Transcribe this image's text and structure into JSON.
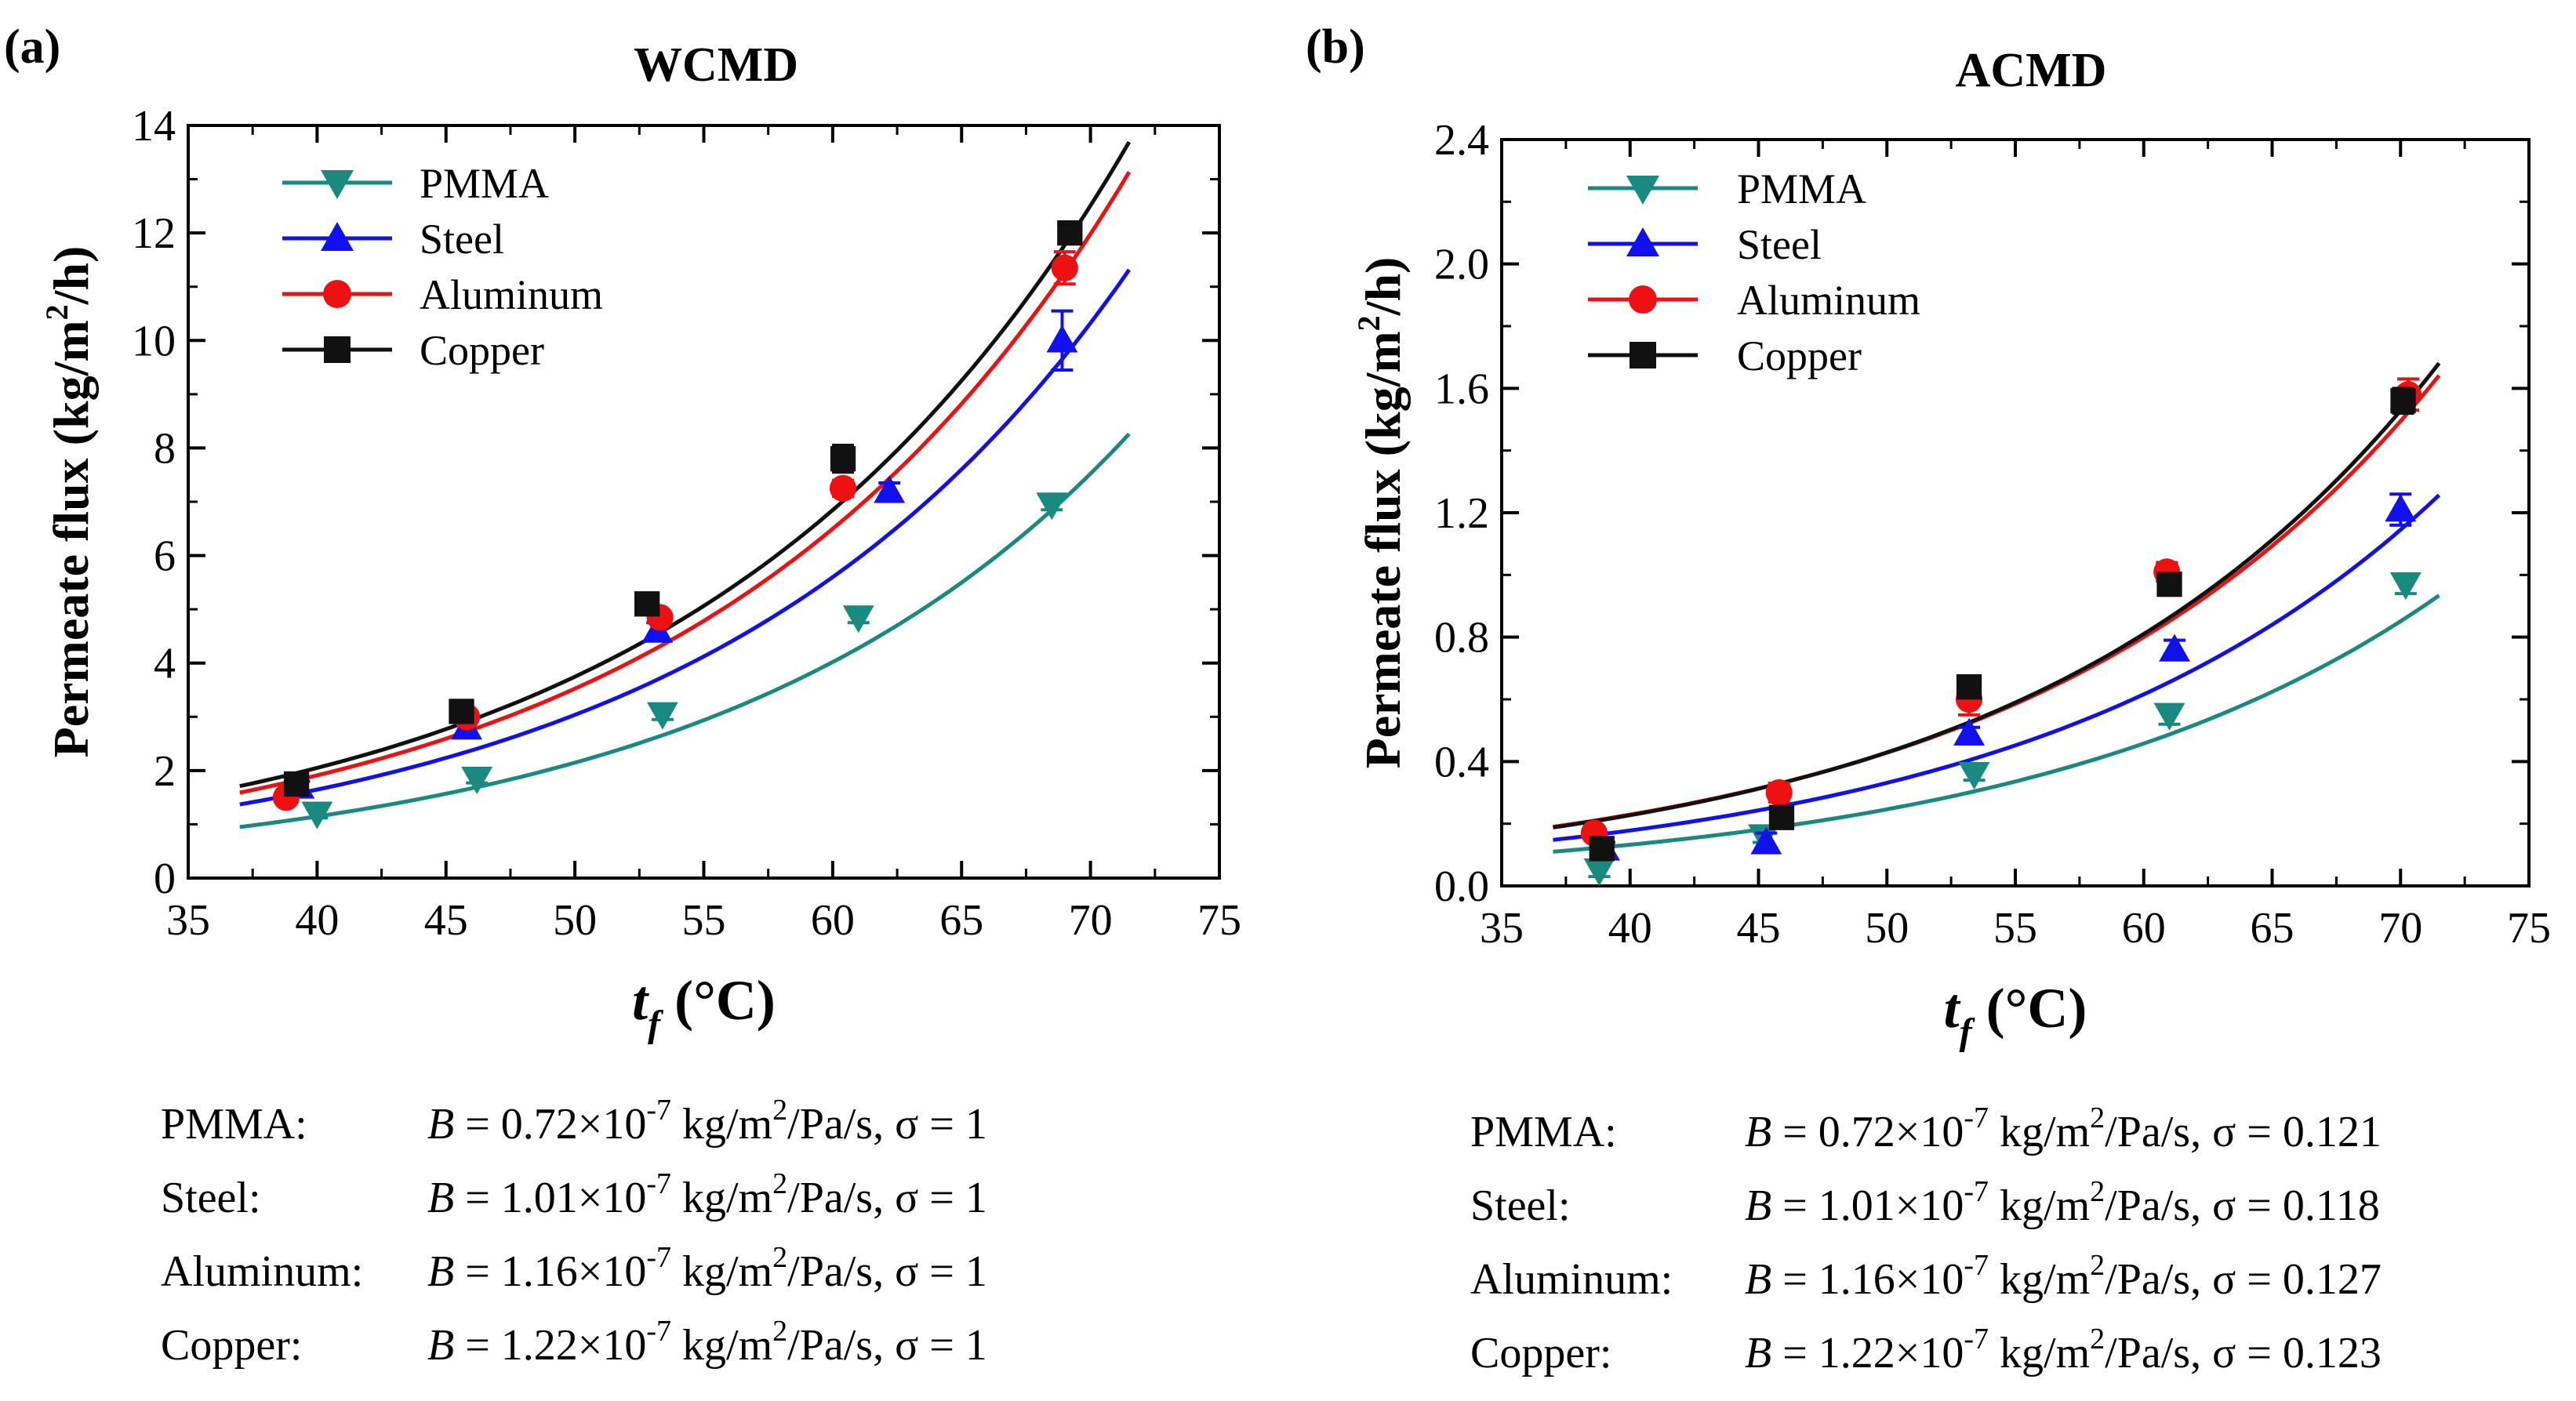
{
  "chart_data": [
    {
      "type": "scatter",
      "panel_label": "(a)",
      "title": "WCMD",
      "xlabel_main": "t",
      "xlabel_sub": "f",
      "xlabel_unit": " (°C)",
      "ylabel_main": "Permeate flux (kg/m",
      "ylabel_sup": "2",
      "ylabel_end": "/h)",
      "xlim": [
        35,
        75
      ],
      "ylim": [
        0,
        14
      ],
      "xticks": [
        35,
        40,
        45,
        50,
        55,
        60,
        65,
        70,
        75
      ],
      "yticks": [
        0,
        2,
        4,
        6,
        8,
        10,
        12,
        14
      ],
      "grid": false,
      "legend_position": "top-left",
      "series": [
        {
          "name": "PMMA",
          "color": "#1a8a80",
          "marker": "triangle-down",
          "x": [
            40.0,
            46.2,
            53.4,
            61.0,
            68.5
          ],
          "y": [
            1.2,
            1.85,
            3.05,
            4.85,
            6.95
          ],
          "err": [
            0.08,
            0.08,
            0.1,
            0.1,
            0.1
          ],
          "fit": {
            "a": 0.95,
            "b": 0.0627
          }
        },
        {
          "name": "Steel",
          "color": "#1111ee",
          "marker": "triangle-up",
          "x": [
            39.3,
            45.8,
            53.2,
            62.2,
            68.9
          ],
          "y": [
            1.7,
            2.8,
            4.6,
            7.2,
            10.0
          ],
          "err": [
            0.1,
            0.1,
            0.15,
            0.15,
            0.55
          ],
          "fit": {
            "a": 1.37,
            "b": 0.0612
          }
        },
        {
          "name": "Aluminum",
          "color": "#ee1111",
          "marker": "circle",
          "x": [
            38.8,
            45.8,
            53.3,
            60.4,
            69.0
          ],
          "y": [
            1.5,
            3.0,
            4.85,
            7.25,
            11.35
          ],
          "err": [
            0.1,
            0.1,
            0.1,
            0.15,
            0.3
          ],
          "fit": {
            "a": 1.59,
            "b": 0.0612
          }
        },
        {
          "name": "Copper",
          "color": "#111111",
          "marker": "square",
          "x": [
            39.2,
            45.6,
            52.8,
            60.4,
            69.2
          ],
          "y": [
            1.75,
            3.1,
            5.1,
            7.8,
            12.0
          ],
          "err": [
            0.1,
            0.1,
            0.1,
            0.25,
            0.2
          ],
          "fit": {
            "a": 1.71,
            "b": 0.0603
          }
        }
      ],
      "fit_range": [
        37,
        71.5
      ],
      "params": [
        {
          "name": "PMMA:",
          "pre": "B",
          "eq": " = 0.72×10",
          "exp": "-7",
          "unit": " kg/m",
          "unit_sup": "2",
          "unit_end": "/Pa/s,  σ = 1"
        },
        {
          "name": "Steel:",
          "pre": "B",
          "eq": " = 1.01×10",
          "exp": "-7",
          "unit": " kg/m",
          "unit_sup": "2",
          "unit_end": "/Pa/s,  σ = 1"
        },
        {
          "name": "Aluminum:",
          "pre": "B",
          "eq": " = 1.16×10",
          "exp": "-7",
          "unit": " kg/m",
          "unit_sup": "2",
          "unit_end": "/Pa/s,  σ = 1"
        },
        {
          "name": "Copper:",
          "pre": "B",
          "eq": " = 1.22×10",
          "exp": "-7",
          "unit": " kg/m",
          "unit_sup": "2",
          "unit_end": "/Pa/s,  σ = 1"
        }
      ]
    },
    {
      "type": "scatter",
      "panel_label": "(b)",
      "title": "ACMD",
      "xlabel_main": "t",
      "xlabel_sub": "f",
      "xlabel_unit": " (°C)",
      "ylabel_main": "Permeate flux (kg/m",
      "ylabel_sup": "2",
      "ylabel_end": "/h)",
      "xlim": [
        35,
        75
      ],
      "ylim": [
        0,
        2.4
      ],
      "xticks": [
        35,
        40,
        45,
        50,
        55,
        60,
        65,
        70,
        75
      ],
      "yticks": [
        0.0,
        0.4,
        0.8,
        1.2,
        1.6,
        2.0,
        2.4
      ],
      "grid": false,
      "legend_position": "top-left",
      "series": [
        {
          "name": "PMMA",
          "color": "#1a8a80",
          "marker": "triangle-down",
          "x": [
            38.8,
            45.2,
            53.4,
            61.0,
            70.2
          ],
          "y": [
            0.05,
            0.16,
            0.36,
            0.55,
            0.97
          ],
          "err": [
            0.02,
            0.02,
            0.02,
            0.03,
            0.03
          ],
          "fit": {
            "a": 0.11,
            "b": 0.062
          }
        },
        {
          "name": "Steel",
          "color": "#1111ee",
          "marker": "triangle-up",
          "x": [
            39.0,
            45.3,
            53.2,
            61.2,
            70.0
          ],
          "y": [
            0.12,
            0.14,
            0.49,
            0.76,
            1.21
          ],
          "err": [
            0.02,
            0.03,
            0.02,
            0.03,
            0.05
          ],
          "fit": {
            "a": 0.148,
            "b": 0.062
          }
        },
        {
          "name": "Aluminum",
          "color": "#ee1111",
          "marker": "circle",
          "x": [
            38.6,
            45.8,
            53.2,
            60.9,
            70.3
          ],
          "y": [
            0.17,
            0.3,
            0.6,
            1.01,
            1.58
          ],
          "err": [
            0.02,
            0.03,
            0.05,
            0.03,
            0.05
          ],
          "fit": {
            "a": 0.19,
            "b": 0.0625
          }
        },
        {
          "name": "Copper",
          "color": "#111111",
          "marker": "square",
          "x": [
            38.9,
            45.9,
            53.2,
            61.0,
            70.1
          ],
          "y": [
            0.12,
            0.22,
            0.64,
            0.97,
            1.56
          ],
          "err": [
            0.02,
            0.02,
            0.03,
            0.03,
            0.04
          ],
          "fit": {
            "a": 0.188,
            "b": 0.0635
          }
        }
      ],
      "fit_range": [
        37,
        71.5
      ],
      "params": [
        {
          "name": "PMMA:",
          "pre": "B",
          "eq": " = 0.72×10",
          "exp": "-7",
          "unit": " kg/m",
          "unit_sup": "2",
          "unit_end": "/Pa/s,  σ = 0.121"
        },
        {
          "name": "Steel:",
          "pre": "B",
          "eq": " = 1.01×10",
          "exp": "-7",
          "unit": " kg/m",
          "unit_sup": "2",
          "unit_end": "/Pa/s,  σ = 0.118"
        },
        {
          "name": "Aluminum:",
          "pre": "B",
          "eq": " = 1.16×10",
          "exp": "-7",
          "unit": " kg/m",
          "unit_sup": "2",
          "unit_end": "/Pa/s,  σ = 0.127"
        },
        {
          "name": "Copper:",
          "pre": "B",
          "eq": " = 1.22×10",
          "exp": "-7",
          "unit": " kg/m",
          "unit_sup": "2",
          "unit_end": "/Pa/s,  σ = 0.123"
        }
      ]
    }
  ]
}
